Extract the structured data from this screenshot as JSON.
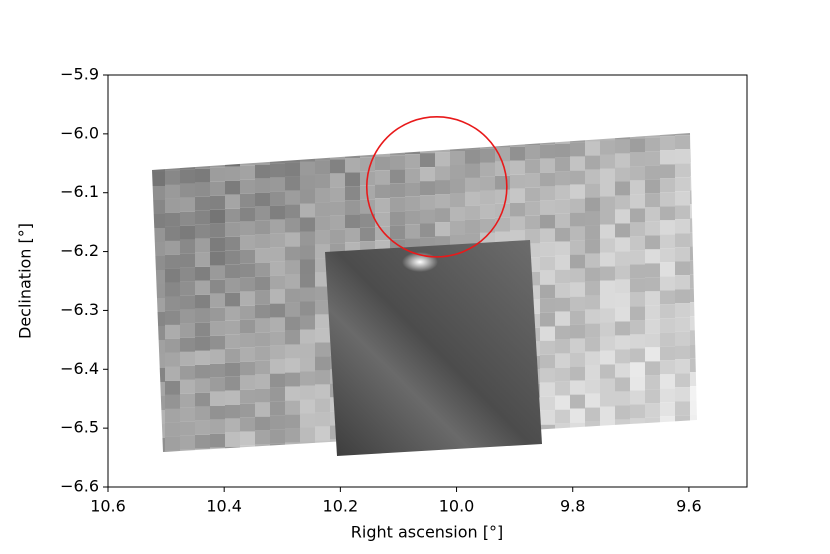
{
  "chart_data": {
    "type": "image",
    "xlabel": "Right ascension [°]",
    "ylabel": "Declination [°]",
    "xlim": [
      10.6,
      9.5
    ],
    "ylim": [
      -6.6,
      -5.9
    ],
    "xticks": [
      10.6,
      10.4,
      10.2,
      {
        "value": 10.0,
        "label": "10.0"
      },
      9.8,
      9.6
    ],
    "yticks": [
      {
        "value": -6.6,
        "label": "−6.6"
      },
      {
        "value": -6.5,
        "label": "−6.5"
      },
      {
        "value": -6.4,
        "label": "−6.4"
      },
      {
        "value": -6.3,
        "label": "−6.3"
      },
      {
        "value": -6.2,
        "label": "−6.2"
      },
      {
        "value": -6.1,
        "label": "−6.1"
      },
      {
        "value": -6.0,
        "label": "−6.0"
      },
      {
        "value": -5.9,
        "label": "−5.9"
      }
    ],
    "circle": {
      "ra": 10.034,
      "dec": -6.09,
      "radius": 0.119,
      "color": "#e8191a"
    }
  }
}
